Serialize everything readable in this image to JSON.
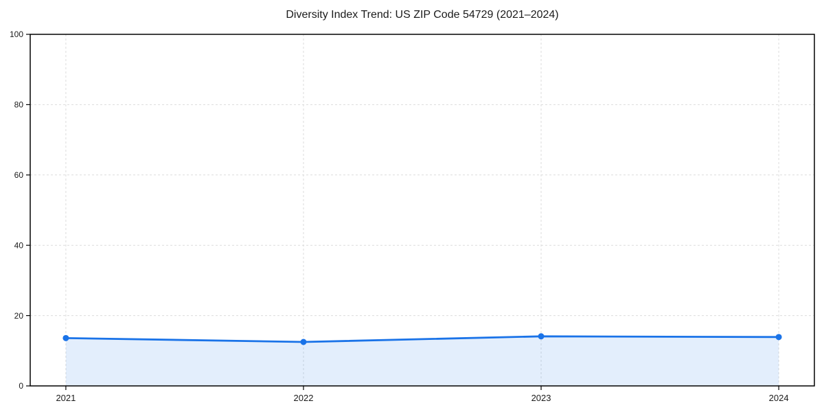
{
  "chart_data": {
    "type": "area",
    "title": "Diversity Index Trend: US ZIP Code 54729 (2021–2024)",
    "series_name": "Diversity Index",
    "x": [
      2021,
      2022,
      2023,
      2024
    ],
    "values": [
      13.6,
      12.5,
      14.1,
      13.9
    ],
    "xtick_labels": [
      "2021",
      "2022",
      "2023",
      "2024"
    ],
    "yticks": [
      0,
      20,
      40,
      60,
      80,
      100
    ],
    "xlabel": "",
    "ylabel": "",
    "xlim": [
      2020.85,
      2024.15
    ],
    "ylim": [
      0,
      100
    ],
    "grid": true,
    "grid_style": "dashed",
    "legend": "none",
    "colors": {
      "line": "#1a73e8",
      "marker": "#1a73e8",
      "area_fill": "rgba(26,115,232,0.12)",
      "grid": "#dcdcdc",
      "axis": "#000000",
      "text": "#1a1a1a",
      "background": "#ffffff"
    }
  }
}
